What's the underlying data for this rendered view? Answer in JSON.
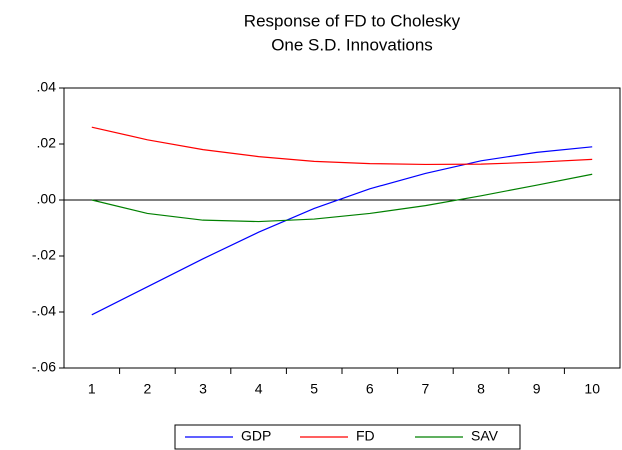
{
  "chart_data": {
    "type": "line",
    "title": [
      "Response of FD to Cholesky",
      "One S.D. Innovations"
    ],
    "categories": [
      "1",
      "2",
      "3",
      "4",
      "5",
      "6",
      "7",
      "8",
      "9",
      "10"
    ],
    "series": [
      {
        "name": "GDP",
        "color": "#0000ff",
        "values": [
          -0.041,
          -0.031,
          -0.021,
          -0.0115,
          -0.003,
          0.004,
          0.0095,
          0.014,
          0.017,
          0.019
        ]
      },
      {
        "name": "FD",
        "color": "#ff0000",
        "values": [
          0.026,
          0.0215,
          0.018,
          0.0155,
          0.0138,
          0.013,
          0.0127,
          0.0128,
          0.0135,
          0.0145
        ]
      },
      {
        "name": "SAV",
        "color": "#008000",
        "values": [
          0,
          -0.0048,
          -0.0072,
          -0.0077,
          -0.0068,
          -0.0048,
          -0.002,
          0.0015,
          0.0053,
          0.0092
        ]
      }
    ],
    "ylim": [
      -0.06,
      0.04
    ],
    "yticks": [
      {
        "value": -0.06,
        "label": "-.06"
      },
      {
        "value": -0.04,
        "label": "-.04"
      },
      {
        "value": -0.02,
        "label": "-.02"
      },
      {
        "value": 0,
        "label": ".00"
      },
      {
        "value": 0.02,
        "label": ".02"
      },
      {
        "value": 0.04,
        "label": ".04"
      }
    ],
    "zero_line": true,
    "legend": "bottom"
  }
}
